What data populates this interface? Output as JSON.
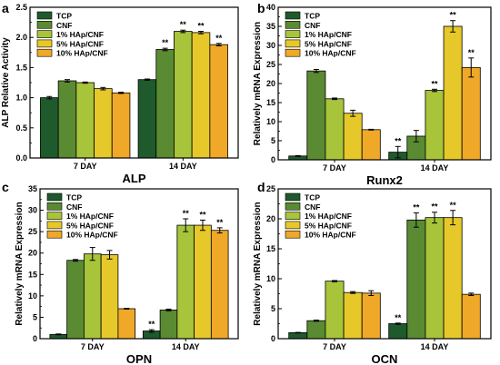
{
  "colors": [
    "#1e5a2c",
    "#5a8a32",
    "#a8c43a",
    "#e6c82a",
    "#f0a828"
  ],
  "chart_data": [
    {
      "type": "bar",
      "panel": "a",
      "title": "ALP",
      "xlabel": "",
      "ylabel": "ALP Relative Activity",
      "categories": [
        "7 DAY",
        "14 DAY"
      ],
      "ylim": [
        0,
        2.5
      ],
      "yticks": [
        "0.0",
        "0.5",
        "1.0",
        "1.5",
        "2.0",
        "2.5"
      ],
      "legend_position": "top-left",
      "series": [
        {
          "name": "TCP",
          "values": [
            1.0,
            1.3
          ],
          "errors": [
            0.02,
            0.01
          ],
          "sig": [
            "",
            ""
          ]
        },
        {
          "name": "CNF",
          "values": [
            1.28,
            1.8
          ],
          "errors": [
            0.02,
            0.02
          ],
          "sig": [
            "",
            "**"
          ]
        },
        {
          "name": "1% HAp/CNF",
          "values": [
            1.25,
            2.1
          ],
          "errors": [
            0.01,
            0.02
          ],
          "sig": [
            "",
            "**"
          ]
        },
        {
          "name": "5% HAp/CNF",
          "values": [
            1.15,
            2.08
          ],
          "errors": [
            0.02,
            0.02
          ],
          "sig": [
            "",
            "**"
          ]
        },
        {
          "name": "10% HAp/CNF",
          "values": [
            1.08,
            1.88
          ],
          "errors": [
            0.01,
            0.02
          ],
          "sig": [
            "",
            "**"
          ]
        }
      ]
    },
    {
      "type": "bar",
      "panel": "b",
      "title": "Runx2",
      "xlabel": "",
      "ylabel": "Relatively mRNA Expression",
      "categories": [
        "7 DAY",
        "14 DAY"
      ],
      "ylim": [
        0,
        40
      ],
      "yticks": [
        "0",
        "5",
        "10",
        "15",
        "20",
        "25",
        "30",
        "35",
        "40"
      ],
      "legend_position": "top-left",
      "series": [
        {
          "name": "TCP",
          "values": [
            1.0,
            2.0
          ],
          "errors": [
            0.1,
            1.5
          ],
          "sig": [
            "",
            "**"
          ]
        },
        {
          "name": "CNF",
          "values": [
            23.3,
            6.2
          ],
          "errors": [
            0.4,
            1.5
          ],
          "sig": [
            "",
            ""
          ]
        },
        {
          "name": "1% HAp/CNF",
          "values": [
            16.0,
            18.2
          ],
          "errors": [
            0.2,
            0.3
          ],
          "sig": [
            "",
            "**"
          ]
        },
        {
          "name": "5% HAp/CNF",
          "values": [
            12.2,
            35.0
          ],
          "errors": [
            0.8,
            1.5
          ],
          "sig": [
            "",
            "**"
          ]
        },
        {
          "name": "10% HAp/CNF",
          "values": [
            7.9,
            24.2
          ],
          "errors": [
            0.1,
            2.5
          ],
          "sig": [
            "",
            "**"
          ]
        }
      ]
    },
    {
      "type": "bar",
      "panel": "c",
      "title": "OPN",
      "xlabel": "",
      "ylabel": "Relatively mRNA Expression",
      "categories": [
        "7 DAY",
        "14 DAY"
      ],
      "ylim": [
        0,
        35
      ],
      "yticks": [
        "0",
        "5",
        "10",
        "15",
        "20",
        "25",
        "30",
        "35"
      ],
      "legend_position": "top-left",
      "series": [
        {
          "name": "TCP",
          "values": [
            1.0,
            1.8
          ],
          "errors": [
            0.1,
            0.3
          ],
          "sig": [
            "",
            "**"
          ]
        },
        {
          "name": "CNF",
          "values": [
            18.3,
            6.7
          ],
          "errors": [
            0.2,
            0.2
          ],
          "sig": [
            "",
            ""
          ]
        },
        {
          "name": "1% HAp/CNF",
          "values": [
            19.8,
            26.5
          ],
          "errors": [
            1.5,
            1.5
          ],
          "sig": [
            "",
            "**"
          ]
        },
        {
          "name": "5% HAp/CNF",
          "values": [
            19.6,
            26.5
          ],
          "errors": [
            1.0,
            1.2
          ],
          "sig": [
            "",
            "**"
          ]
        },
        {
          "name": "10% HAp/CNF",
          "values": [
            7.0,
            25.3
          ],
          "errors": [
            0.1,
            0.6
          ],
          "sig": [
            "",
            "**"
          ]
        }
      ]
    },
    {
      "type": "bar",
      "panel": "d",
      "title": "OCN",
      "xlabel": "",
      "ylabel": "Relatively mRNA Expression",
      "categories": [
        "7 DAY",
        "14 DAY"
      ],
      "ylim": [
        0,
        25
      ],
      "yticks": [
        "0",
        "5",
        "10",
        "15",
        "20",
        "25"
      ],
      "legend_position": "top-left",
      "series": [
        {
          "name": "TCP",
          "values": [
            1.0,
            2.5
          ],
          "errors": [
            0.05,
            0.1
          ],
          "sig": [
            "",
            "**"
          ]
        },
        {
          "name": "CNF",
          "values": [
            3.0,
            19.8
          ],
          "errors": [
            0.1,
            1.2
          ],
          "sig": [
            "",
            "**"
          ]
        },
        {
          "name": "1% HAp/CNF",
          "values": [
            9.6,
            20.2
          ],
          "errors": [
            0.1,
            0.9
          ],
          "sig": [
            "",
            "**"
          ]
        },
        {
          "name": "5% HAp/CNF",
          "values": [
            7.7,
            20.2
          ],
          "errors": [
            0.15,
            1.2
          ],
          "sig": [
            "",
            "**"
          ]
        },
        {
          "name": "10% HAp/CNF",
          "values": [
            7.6,
            7.4
          ],
          "errors": [
            0.4,
            0.2
          ],
          "sig": [
            "",
            ""
          ]
        }
      ]
    }
  ]
}
